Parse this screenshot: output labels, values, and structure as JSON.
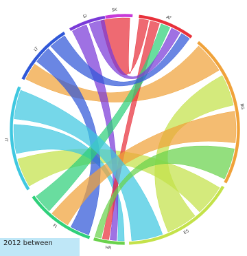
{
  "countries": [
    {
      "code": "SK",
      "color": "#c83bd8"
    },
    {
      "code": "AT",
      "color": "#e8313b"
    },
    {
      "code": "BG",
      "color": "#f0a23a"
    },
    {
      "code": "ES",
      "color": "#c4e24a"
    },
    {
      "code": "HR",
      "color": "#6ad24c"
    },
    {
      "code": "FI",
      "color": "#2fd07a"
    },
    {
      "code": "IT",
      "color": "#40c8e0"
    },
    {
      "code": "LT",
      "color": "#3058d8"
    },
    {
      "code": "SI",
      "color": "#7a3ad8"
    }
  ],
  "flows": [
    {
      "from": "ES",
      "to": "IT"
    },
    {
      "from": "BG",
      "to": "LT"
    },
    {
      "from": "ES",
      "to": "BG"
    },
    {
      "from": "AT",
      "to": "SK"
    },
    {
      "from": "IT",
      "to": "HR"
    },
    {
      "from": "LT",
      "to": "FI"
    },
    {
      "from": "SI",
      "to": "HR"
    },
    {
      "from": "AT",
      "to": "HR"
    },
    {
      "from": "BG",
      "to": "FI"
    },
    {
      "from": "FI",
      "to": "AT"
    },
    {
      "from": "IT",
      "to": "ES"
    },
    {
      "from": "SI",
      "to": "AT"
    },
    {
      "from": "LT",
      "to": "AT"
    },
    {
      "from": "HR",
      "to": "BG"
    }
  ],
  "tooltip": {
    "text": "2012 between"
  }
}
